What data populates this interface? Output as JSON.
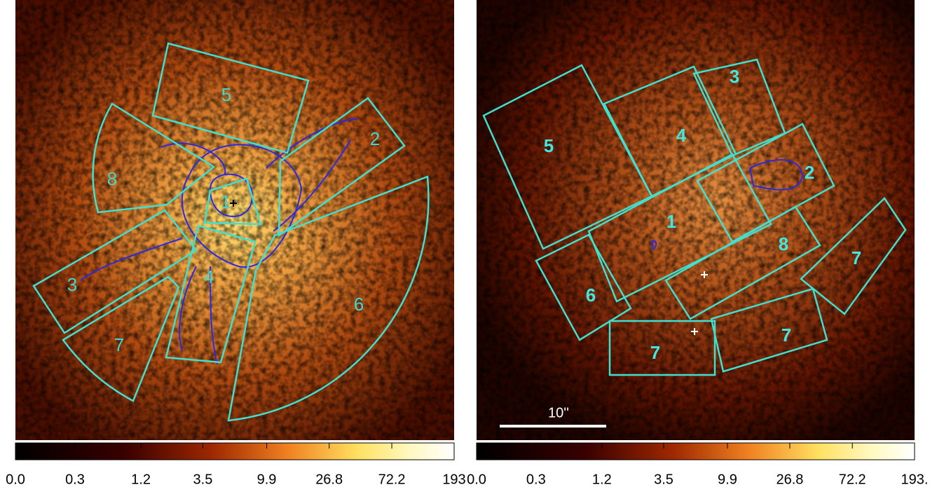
{
  "panels": [
    {
      "regions": [
        "5",
        "2",
        "8",
        "1",
        "3",
        "4",
        "7",
        "6"
      ],
      "colorbar": {
        "range": [
          0,
          193
        ],
        "ticks": [
          {
            "value": 0,
            "label": "0.0"
          },
          0.3,
          1.2,
          3.5,
          9.9,
          26.8,
          72.2,
          193
        ]
      }
    },
    {
      "regions": [
        "3",
        "4",
        "5",
        "2",
        "1",
        "8",
        "7",
        "6",
        "7",
        "7"
      ],
      "scale_bar": "10''",
      "colorbar": {
        "range": [
          0,
          193
        ],
        "ticks": [
          {
            "value": 0,
            "label": "0.0"
          },
          0.3,
          1.2,
          3.5,
          9.9,
          26.8,
          72.2,
          {
            "value": 193,
            "label": "193."
          }
        ]
      }
    }
  ]
}
